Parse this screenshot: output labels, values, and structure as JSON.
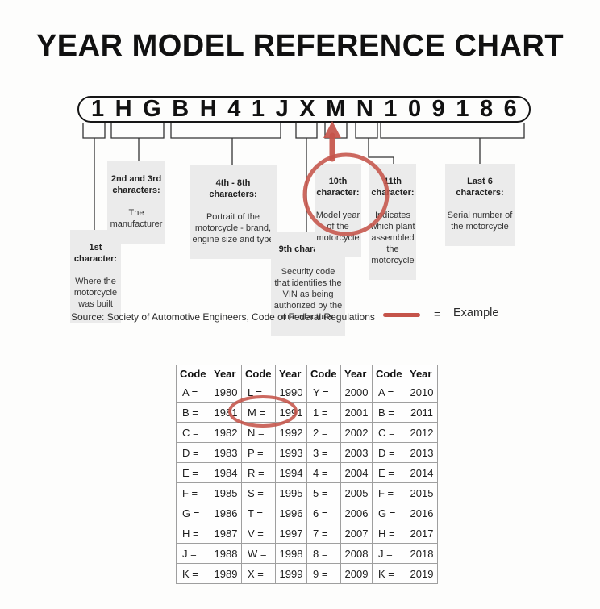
{
  "page": {
    "title": "YEAR MODEL REFERENCE CHART"
  },
  "colors": {
    "highlight_red": "#c5544a",
    "callout_bg": "#ebebeb",
    "connector": "#333333"
  },
  "vin": {
    "characters": [
      "1",
      "H",
      "G",
      "B",
      "H",
      "4",
      "1",
      "J",
      "X",
      "M",
      "N",
      "1",
      "0",
      "9",
      "1",
      "8",
      "6"
    ]
  },
  "callouts": {
    "first_char": {
      "title": "1st\ncharacter:",
      "body": "Where the\nmotorcycle\nwas built"
    },
    "chars_2_3": {
      "title": "2nd and 3rd\ncharacters:",
      "body": "The\nmanufacturer"
    },
    "chars_4_8": {
      "title": "4th - 8th\ncharacters:",
      "body": "Portrait of the\nmotorcycle - brand,\nengine size and type"
    },
    "char_9": {
      "title": "9th character:",
      "body": "Security code\nthat identifies the\nVIN as being\nauthorized by the\nmanufacturer"
    },
    "char_10": {
      "title": "10th\ncharacter:",
      "body": "Model year\nof the\nmotorcycle"
    },
    "char_11": {
      "title": "11th\ncharacter:",
      "body": "Indicates\nwhich plant\nassembled\nthe\nmotorcycle"
    },
    "last_6": {
      "title": "Last 6\ncharacters:",
      "body": "Serial number of\nthe motorcycle"
    }
  },
  "source": {
    "text": "Source:  Society of Automotive Engineers, Code of Federal Regulations"
  },
  "legend": {
    "equals_sign": "=",
    "label": "Example"
  },
  "year_table": {
    "headers": [
      "Code",
      "Year",
      "Code",
      "Year",
      "Code",
      "Year",
      "Code",
      "Year"
    ],
    "rows": [
      [
        "A =",
        "1980",
        "L =",
        "1990",
        "Y =",
        "2000",
        "A =",
        "2010"
      ],
      [
        "B =",
        "1981",
        "M =",
        "1991",
        "1 =",
        "2001",
        "B =",
        "2011"
      ],
      [
        "C =",
        "1982",
        "N =",
        "1992",
        "2 =",
        "2002",
        "C =",
        "2012"
      ],
      [
        "D =",
        "1983",
        "P =",
        "1993",
        "3 =",
        "2003",
        "D =",
        "2013"
      ],
      [
        "E =",
        "1984",
        "R =",
        "1994",
        "4 =",
        "2004",
        "E =",
        "2014"
      ],
      [
        "F =",
        "1985",
        "S =",
        "1995",
        "5 =",
        "2005",
        "F =",
        "2015"
      ],
      [
        "G =",
        "1986",
        "T =",
        "1996",
        "6 =",
        "2006",
        "G =",
        "2016"
      ],
      [
        "H =",
        "1987",
        "V =",
        "1997",
        "7 =",
        "2007",
        "H =",
        "2017"
      ],
      [
        "J =",
        "1988",
        "W =",
        "1998",
        "8 =",
        "2008",
        "J =",
        "2018"
      ],
      [
        "K =",
        "1989",
        "X =",
        "1999",
        "9 =",
        "2009",
        "K =",
        "2019"
      ]
    ],
    "highlighted_pair": {
      "code": "M =",
      "year": "1991"
    }
  }
}
